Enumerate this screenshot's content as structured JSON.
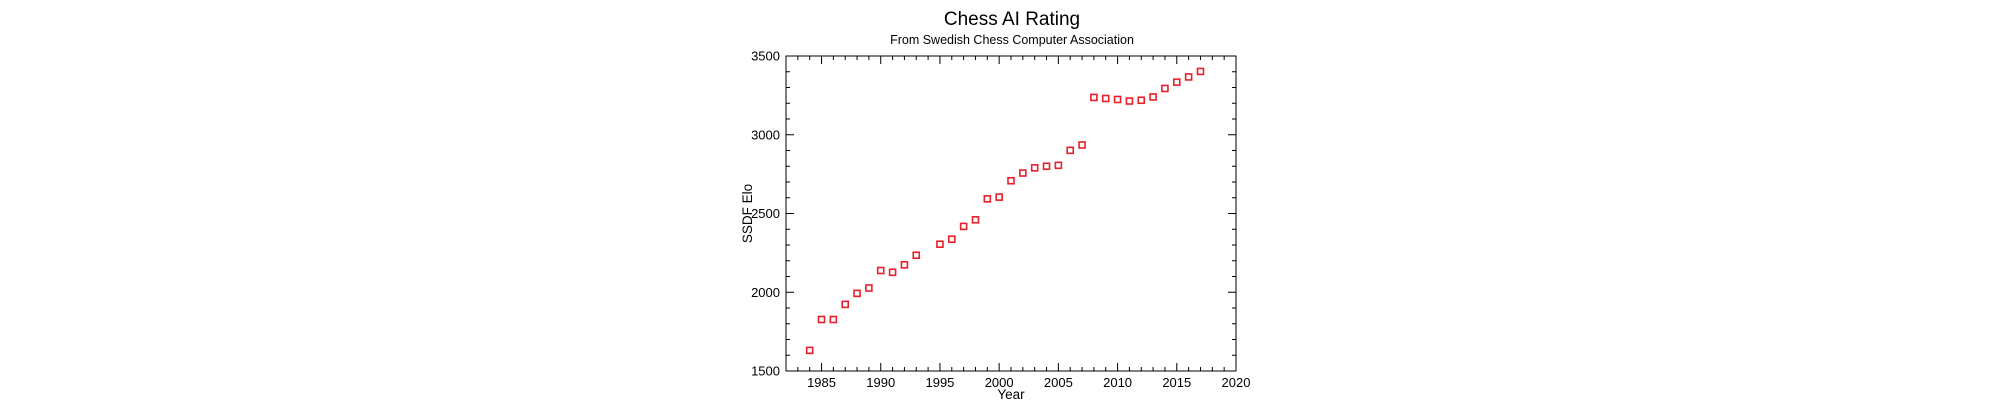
{
  "chart_data": {
    "type": "scatter",
    "title": "Chess AI Rating",
    "subtitle": "From Swedish Chess Computer Association",
    "xlabel": "Year",
    "ylabel": "SSDF Elo",
    "xlim": [
      1982,
      2020
    ],
    "ylim": [
      1500,
      3500
    ],
    "xticks": [
      1985,
      1990,
      1995,
      2000,
      2005,
      2010,
      2015,
      2020
    ],
    "yticks": [
      1500,
      2000,
      2500,
      3000,
      3500
    ],
    "xtick_labels": [
      "1985",
      "1990",
      "1995",
      "2000",
      "2005",
      "2010",
      "2015",
      "2020"
    ],
    "ytick_labels": [
      "1500",
      "2000",
      "2500",
      "3000",
      "3500"
    ],
    "marker": "open-square",
    "marker_color": "#e8202a",
    "grid": false,
    "points": [
      {
        "x": 1984,
        "y": 1631
      },
      {
        "x": 1985,
        "y": 1827
      },
      {
        "x": 1986,
        "y": 1827
      },
      {
        "x": 1987,
        "y": 1923
      },
      {
        "x": 1988,
        "y": 1993
      },
      {
        "x": 1989,
        "y": 2027
      },
      {
        "x": 1990,
        "y": 2138
      },
      {
        "x": 1991,
        "y": 2127
      },
      {
        "x": 1992,
        "y": 2174
      },
      {
        "x": 1993,
        "y": 2235
      },
      {
        "x": 1995,
        "y": 2305
      },
      {
        "x": 1996,
        "y": 2337
      },
      {
        "x": 1997,
        "y": 2418
      },
      {
        "x": 1998,
        "y": 2460
      },
      {
        "x": 1999,
        "y": 2593
      },
      {
        "x": 2000,
        "y": 2604
      },
      {
        "x": 2001,
        "y": 2708
      },
      {
        "x": 2002,
        "y": 2757
      },
      {
        "x": 2003,
        "y": 2790
      },
      {
        "x": 2004,
        "y": 2800
      },
      {
        "x": 2005,
        "y": 2806
      },
      {
        "x": 2006,
        "y": 2901
      },
      {
        "x": 2007,
        "y": 2935
      },
      {
        "x": 2008,
        "y": 3237
      },
      {
        "x": 2009,
        "y": 3230
      },
      {
        "x": 2010,
        "y": 3224
      },
      {
        "x": 2011,
        "y": 3214
      },
      {
        "x": 2012,
        "y": 3219
      },
      {
        "x": 2013,
        "y": 3240
      },
      {
        "x": 2014,
        "y": 3294
      },
      {
        "x": 2015,
        "y": 3334
      },
      {
        "x": 2016,
        "y": 3367
      },
      {
        "x": 2017,
        "y": 3402
      }
    ]
  }
}
